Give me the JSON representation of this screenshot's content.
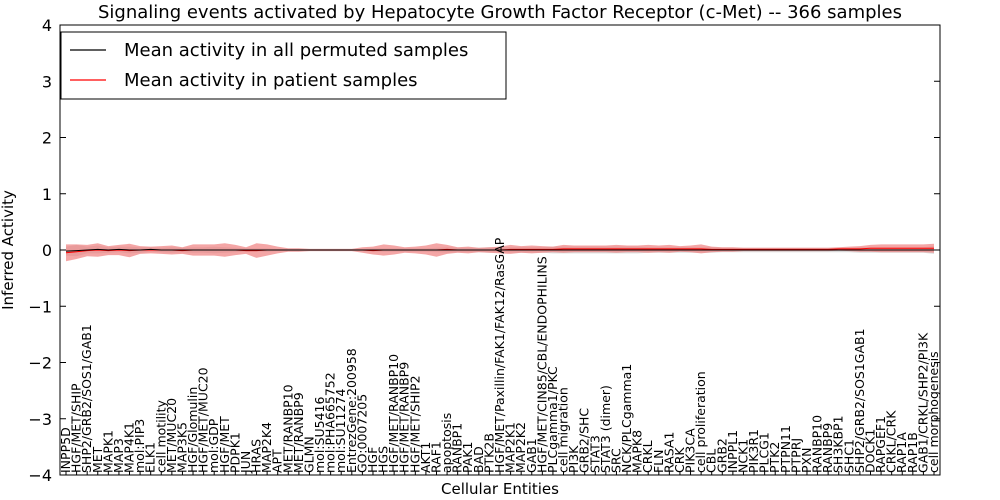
{
  "chart_data": {
    "type": "line",
    "title": "Signaling events activated by Hepatocyte Growth Factor Receptor (c-Met) -- 366 samples",
    "xlabel": "Cellular Entities",
    "ylabel": "Inferred Activity",
    "ylim": [
      -4,
      4
    ],
    "yticks": [
      -4,
      -3,
      -2,
      -1,
      0,
      1,
      2,
      3,
      4
    ],
    "ytick_labels": [
      "−4",
      "−3",
      "−2",
      "−1",
      "0",
      "1",
      "2",
      "3",
      "4"
    ],
    "grid": false,
    "legend": {
      "placement": "top-left",
      "entries": [
        {
          "label": "Mean activity in all permuted samples",
          "color": "#000000"
        },
        {
          "label": "Mean activity in patient samples",
          "color": "#ff0000"
        }
      ]
    },
    "categories": [
      "INPP5D",
      "HGF/MET/SHIP",
      "SHP2/GRB2/SOS1/GAB1",
      "MET",
      "MAPK1",
      "MAP3",
      "MAP4K1",
      "mol:PIP3",
      "ELK1",
      "cell motility",
      "MET/MUC20",
      "MAP3K5",
      "HGF/Glomulin",
      "HGF/MET/MUC20",
      "mol:GDP",
      "HGF/MET",
      "PDPK1",
      "JUN",
      "HRAS",
      "MAP2K4",
      "APT",
      "MET/RANBP10",
      "MET/RANBP9",
      "GLMN",
      "mol:SU5416",
      "mol:PHA665752",
      "mol:SU11274",
      "EntrezGene:200958",
      "GO:0007205",
      "HGF",
      "HGS",
      "HGF/MET/RANBP10",
      "HGF/MET/RANBP9",
      "HGF/MET/SHIP2",
      "AKT1",
      "RAF1",
      "apoptosis",
      "RANBP1",
      "PAK1",
      "BAD",
      "PTK2B",
      "HGF/MET/Paxillin/FAK1/FAK12/RasGAP",
      "MAP2K1",
      "MAP2K2",
      "GAB1",
      "HGF/MET/CIN85/CBL/ENDOPHILINS",
      "PLCgamma1/PKC",
      "cell migration",
      "PI3K",
      "GRB2/SHC",
      "STAT3",
      "STAT3 (dimer)",
      "SRC",
      "NCK/PLCgamma1",
      "MAPK8",
      "CRKL",
      "FLN",
      "RASA1",
      "CRK",
      "PIK3CA",
      "cell proliferation",
      "CBL",
      "GRB2",
      "INPPL1",
      "NCK1",
      "PIK3R1",
      "PLCG1",
      "PTK2",
      "PTPN11",
      "PTPRJ",
      "PXN",
      "RANBP10",
      "RANBP9",
      "SH3KBP1",
      "SHC1",
      "SHP2/GRB2/SOS1GAB1",
      "DOCK1",
      "RAPGEF1",
      "CRKL/CRK",
      "RAP1A",
      "RAP1B",
      "GAB1/CRKL/SHP2/PI3K",
      "cell morphogenesis"
    ],
    "series": [
      {
        "name": "Mean activity in all permuted samples",
        "color": "#000000",
        "band_color": "#bbbbbb",
        "values": [
          -0.02,
          -0.01,
          0.0,
          0.01,
          0.0,
          0.01,
          0.0,
          0.0,
          0.01,
          0.0,
          0.0,
          0.0,
          0.0,
          0.0,
          0.0,
          0.0,
          0.0,
          0.0,
          0.0,
          0.0,
          0.0,
          0.0,
          0.0,
          0.0,
          0.0,
          0.0,
          0.0,
          0.0,
          0.0,
          0.0,
          0.0,
          0.0,
          0.0,
          0.0,
          0.0,
          0.0,
          0.0,
          0.0,
          0.0,
          0.0,
          0.0,
          0.0,
          0.0,
          0.0,
          0.0,
          0.0,
          0.0,
          0.0,
          0.0,
          0.0,
          0.0,
          0.0,
          0.0,
          0.0,
          0.0,
          0.0,
          0.0,
          0.0,
          0.0,
          0.0,
          0.0,
          0.0,
          0.0,
          0.0,
          0.0,
          0.0,
          0.0,
          0.0,
          0.0,
          0.0,
          0.0,
          0.0,
          0.0,
          0.0,
          0.0,
          0.0,
          0.0,
          0.0,
          0.0,
          0.0,
          0.0,
          0.0,
          0.0
        ],
        "spread": [
          0.08,
          0.1,
          0.06,
          0.07,
          0.05,
          0.05,
          0.06,
          0.05,
          0.04,
          0.04,
          0.05,
          0.04,
          0.05,
          0.05,
          0.06,
          0.05,
          0.04,
          0.03,
          0.03,
          0.03,
          0.02,
          0.02,
          0.02,
          0.02,
          0.02,
          0.02,
          0.02,
          0.02,
          0.02,
          0.03,
          0.03,
          0.03,
          0.03,
          0.03,
          0.03,
          0.04,
          0.05,
          0.04,
          0.04,
          0.04,
          0.05,
          0.04,
          0.05,
          0.05,
          0.05,
          0.05,
          0.06,
          0.06,
          0.06,
          0.06,
          0.06,
          0.06,
          0.06,
          0.06,
          0.06,
          0.05,
          0.05,
          0.05,
          0.05,
          0.05,
          0.05,
          0.05,
          0.04,
          0.04,
          0.04,
          0.04,
          0.04,
          0.04,
          0.04,
          0.04,
          0.04,
          0.04,
          0.04,
          0.04,
          0.04,
          0.05,
          0.05,
          0.05,
          0.05,
          0.05,
          0.05,
          0.05,
          0.07
        ]
      },
      {
        "name": "Mean activity in patient samples",
        "color": "#ff0000",
        "band_color": "#f08080",
        "values": [
          -0.05,
          -0.03,
          -0.01,
          0.0,
          -0.01,
          0.0,
          -0.01,
          0.0,
          0.0,
          0.0,
          0.0,
          -0.01,
          0.0,
          0.0,
          0.0,
          0.0,
          0.0,
          -0.01,
          -0.01,
          0.0,
          0.0,
          0.0,
          0.0,
          0.0,
          0.0,
          0.0,
          0.0,
          0.0,
          0.0,
          -0.01,
          0.0,
          0.0,
          0.0,
          0.0,
          0.0,
          0.0,
          0.01,
          0.0,
          0.0,
          0.0,
          0.0,
          0.0,
          0.01,
          0.01,
          0.01,
          0.01,
          0.01,
          0.02,
          0.02,
          0.02,
          0.02,
          0.02,
          0.02,
          0.02,
          0.02,
          0.02,
          0.02,
          0.02,
          0.02,
          0.02,
          0.02,
          0.01,
          0.01,
          0.01,
          0.01,
          0.01,
          0.01,
          0.01,
          0.01,
          0.01,
          0.01,
          0.01,
          0.01,
          0.02,
          0.02,
          0.02,
          0.03,
          0.03,
          0.03,
          0.03,
          0.03,
          0.03,
          0.03
        ],
        "spread": [
          0.15,
          0.13,
          0.1,
          0.12,
          0.08,
          0.09,
          0.12,
          0.07,
          0.06,
          0.07,
          0.08,
          0.06,
          0.1,
          0.1,
          0.1,
          0.12,
          0.09,
          0.06,
          0.13,
          0.1,
          0.06,
          0.03,
          0.03,
          0.02,
          0.02,
          0.02,
          0.02,
          0.02,
          0.05,
          0.07,
          0.1,
          0.08,
          0.05,
          0.06,
          0.08,
          0.12,
          0.08,
          0.05,
          0.06,
          0.04,
          0.05,
          0.06,
          0.08,
          0.06,
          0.07,
          0.06,
          0.05,
          0.07,
          0.06,
          0.06,
          0.06,
          0.06,
          0.07,
          0.06,
          0.06,
          0.07,
          0.06,
          0.07,
          0.05,
          0.06,
          0.08,
          0.05,
          0.04,
          0.04,
          0.03,
          0.03,
          0.03,
          0.03,
          0.03,
          0.03,
          0.03,
          0.03,
          0.03,
          0.03,
          0.04,
          0.05,
          0.06,
          0.07,
          0.07,
          0.07,
          0.07,
          0.07,
          0.08
        ]
      }
    ]
  }
}
